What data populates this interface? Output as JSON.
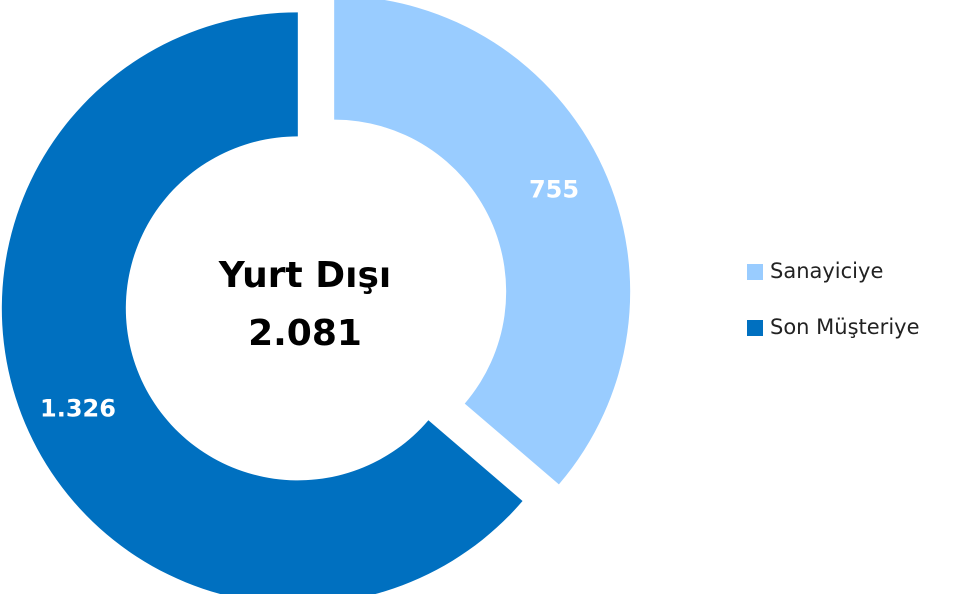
{
  "chart_data": {
    "type": "pie",
    "donut": true,
    "annotations": [
      "Yurt Dışı",
      "2.081"
    ],
    "categories": [
      "Sanayiciye",
      "Son Müşteriye"
    ],
    "values": [
      755,
      1326
    ],
    "value_labels": [
      "755",
      "1.326"
    ],
    "colors": [
      "#99ccff",
      "#0070c0"
    ],
    "legend": "right"
  }
}
